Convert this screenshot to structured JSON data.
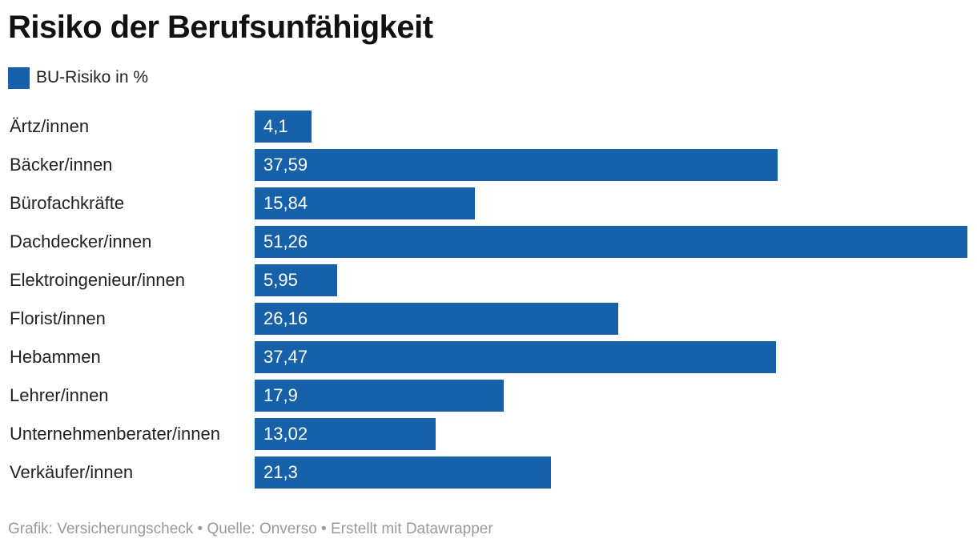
{
  "title": "Risiko der Berufsunfähigkeit",
  "legend": {
    "label": "BU-Risiko in %",
    "color": "#1760aa"
  },
  "footer": {
    "text": "Grafik: Versicherungscheck • Quelle: Onverso • Erstellt mit Datawrapper"
  },
  "chart_data": {
    "type": "bar",
    "orientation": "horizontal",
    "title": "Risiko der Berufsunfähigkeit",
    "series": [
      {
        "name": "BU-Risiko in %",
        "color": "#1760aa",
        "values": [
          4.1,
          37.59,
          15.84,
          51.26,
          5.95,
          26.16,
          37.47,
          17.9,
          13.02,
          21.3
        ]
      }
    ],
    "categories": [
      "Ärtz/innen",
      "Bäcker/innen",
      "Bürofachkräfte",
      "Dachdecker/innen",
      "Elektroingenieur/innen",
      "Florist/innen",
      "Hebammen",
      "Lehrer/innen",
      "Unternehmenberater/innen",
      "Verkäufer/innen"
    ],
    "value_labels": [
      "4,1",
      "37,59",
      "15,84",
      "51,26",
      "5,95",
      "26,16",
      "37,47",
      "17,9",
      "13,02",
      "21,3"
    ],
    "xlim": [
      0,
      51.26
    ],
    "grid": false,
    "legend_position": "top-left"
  }
}
